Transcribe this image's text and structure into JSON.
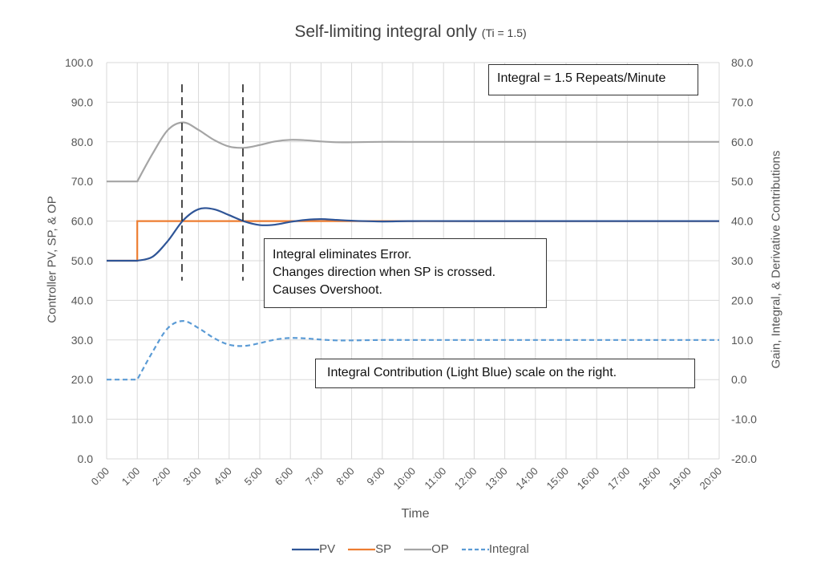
{
  "chart_data": {
    "type": "line",
    "title": "Self-limiting integral only",
    "subtitle": "(Ti = 1.5)",
    "xlabel": "Time",
    "ylabel": "Controller PV, SP, & OP",
    "y2label": "Gain, Integral, & Derivative Contributions",
    "xlim": [
      0,
      20
    ],
    "ylim": [
      0,
      100
    ],
    "y2lim": [
      -20,
      80
    ],
    "grid": true,
    "legend": "bottom",
    "x_ticks": [
      "0:00",
      "1:00",
      "2:00",
      "3:00",
      "4:00",
      "5:00",
      "6:00",
      "7:00",
      "8:00",
      "9:00",
      "10:00",
      "11:00",
      "12:00",
      "13:00",
      "14:00",
      "15:00",
      "16:00",
      "17:00",
      "18:00",
      "19:00",
      "20:00"
    ],
    "y_ticks": [
      "0.0",
      "10.0",
      "20.0",
      "30.0",
      "40.0",
      "50.0",
      "60.0",
      "70.0",
      "80.0",
      "90.0",
      "100.0"
    ],
    "y2_ticks": [
      "-20.0",
      "-10.0",
      "0.0",
      "10.0",
      "20.0",
      "30.0",
      "40.0",
      "50.0",
      "60.0",
      "70.0",
      "80.0"
    ],
    "x_minutes": [
      0,
      1,
      1.5,
      2,
      2.5,
      3,
      3.5,
      4,
      4.5,
      5,
      5.5,
      6,
      6.5,
      7,
      7.5,
      8,
      9,
      10,
      12,
      20
    ],
    "series": [
      {
        "name": "PV",
        "axis": "left",
        "color": "#2F5597",
        "dash": false,
        "values": [
          50,
          50,
          51,
          55,
          60.2,
          63,
          63,
          61.5,
          59.9,
          59,
          59.1,
          59.8,
          60.3,
          60.5,
          60.3,
          60.1,
          59.9,
          60,
          60,
          60
        ]
      },
      {
        "name": "SP",
        "axis": "left",
        "color": "#ED7D31",
        "dash": false,
        "step": true,
        "points": [
          [
            0,
            50
          ],
          [
            1,
            50
          ],
          [
            1,
            60
          ],
          [
            20,
            60
          ]
        ]
      },
      {
        "name": "OP",
        "axis": "left",
        "color": "#A5A5A5",
        "dash": false,
        "values": [
          70,
          70,
          77,
          83,
          84.9,
          83,
          80.5,
          78.8,
          78.5,
          79.2,
          80.1,
          80.5,
          80.4,
          80.1,
          79.9,
          79.9,
          80,
          80,
          80,
          80
        ]
      },
      {
        "name": "Integral",
        "axis": "right",
        "color": "#5B9BD5",
        "dash": true,
        "values": [
          0,
          0,
          7,
          13,
          14.8,
          13,
          10.5,
          8.8,
          8.5,
          9.2,
          10.1,
          10.5,
          10.4,
          10.1,
          9.9,
          9.9,
          10,
          10,
          10,
          10
        ]
      }
    ],
    "markers": [
      {
        "x": 2.46,
        "y_from": 45,
        "y_to": 94.5
      },
      {
        "x": 4.45,
        "y_from": 45,
        "y_to": 94.5
      }
    ],
    "annotations": {
      "integral_rate": "Integral = 1.5 Repeats/Minute",
      "note_lines": [
        "Integral eliminates Error.",
        "Changes direction when SP is crossed.",
        "Causes Overshoot."
      ],
      "scale_note": "Integral Contribution (Light Blue) scale on the right."
    }
  }
}
